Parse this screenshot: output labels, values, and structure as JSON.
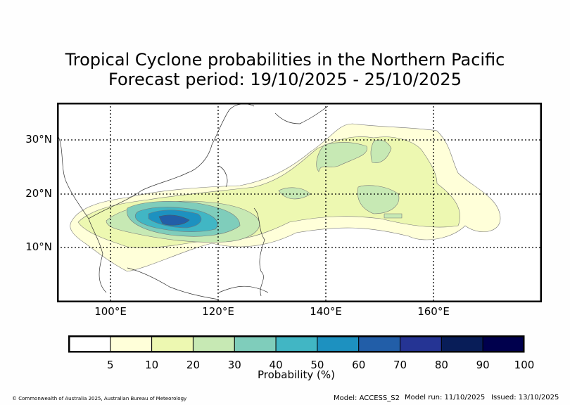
{
  "title": {
    "line1": "Tropical Cyclone probabilities in the Northern Pacific",
    "line2": "Forecast period: 19/10/2025 - 25/10/2025"
  },
  "map": {
    "lat_labels": [
      "30°N",
      "20°N",
      "10°N"
    ],
    "lon_labels": [
      "100°E",
      "120°E",
      "140°E",
      "160°E"
    ]
  },
  "colorbar": {
    "title": "Probability (%)",
    "ticks": [
      "5",
      "10",
      "20",
      "30",
      "40",
      "50",
      "60",
      "70",
      "80",
      "90",
      "100"
    ],
    "colors": [
      "#ffffff",
      "#ffffd9",
      "#edf8b1",
      "#c7e9b4",
      "#7fcdbb",
      "#41b6c4",
      "#1d91c0",
      "#225ea8",
      "#253494",
      "#081d58",
      "#00004d"
    ]
  },
  "footer": {
    "copyright": "© Commonwealth of Australia 2025, Australian Bureau of Meteorology",
    "model": "Model: ACCESS_S2",
    "model_run": "Model run: 11/10/2025",
    "issued": "Issued: 13/10/2025"
  }
}
